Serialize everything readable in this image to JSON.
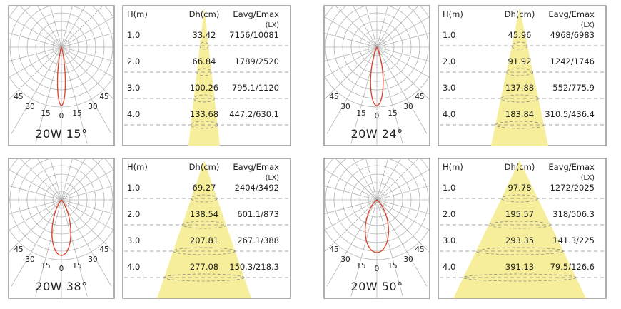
{
  "colors": {
    "beam": "#f6ee9a",
    "curve": "#d9412a",
    "grid": "#b5b5b5",
    "frame": "#9a9a9a",
    "dash": "#8a8a8a"
  },
  "headers": {
    "height": "H(m)",
    "diameter": "Dh(cm)",
    "illuminance": "Eavg/Emax",
    "unit": "(LX)"
  },
  "polar_labels": [
    "45",
    "30",
    "15",
    "0",
    "15",
    "30",
    "45"
  ],
  "panels": [
    {
      "label": "20W 15°",
      "beam_angle": 15,
      "rows": [
        {
          "h": "1.0",
          "d": "33.42",
          "e": "7156/10081"
        },
        {
          "h": "2.0",
          "d": "66.84",
          "e": "1789/2520"
        },
        {
          "h": "3.0",
          "d": "100.26",
          "e": "795.1/1120"
        },
        {
          "h": "4.0",
          "d": "133.68",
          "e": "447.2/630.1"
        }
      ]
    },
    {
      "label": "20W 24°",
      "beam_angle": 24,
      "rows": [
        {
          "h": "1.0",
          "d": "45.96",
          "e": "4968/6983"
        },
        {
          "h": "2.0",
          "d": "91.92",
          "e": "1242/1746"
        },
        {
          "h": "3.0",
          "d": "137.88",
          "e": "552/775.9"
        },
        {
          "h": "4.0",
          "d": "183.84",
          "e": "310.5/436.4"
        }
      ]
    },
    {
      "label": "20W 38°",
      "beam_angle": 38,
      "rows": [
        {
          "h": "1.0",
          "d": "69.27",
          "e": "2404/3492"
        },
        {
          "h": "2.0",
          "d": "138.54",
          "e": "601.1/873"
        },
        {
          "h": "3.0",
          "d": "207.81",
          "e": "267.1/388"
        },
        {
          "h": "4.0",
          "d": "277.08",
          "e": "150.3/218.3"
        }
      ]
    },
    {
      "label": "20W 50°",
      "beam_angle": 50,
      "rows": [
        {
          "h": "1.0",
          "d": "97.78",
          "e": "1272/2025"
        },
        {
          "h": "2.0",
          "d": "195.57",
          "e": "318/506.3"
        },
        {
          "h": "3.0",
          "d": "293.35",
          "e": "141.3/225"
        },
        {
          "h": "4.0",
          "d": "391.13",
          "e": "79.5/126.6"
        }
      ]
    }
  ]
}
